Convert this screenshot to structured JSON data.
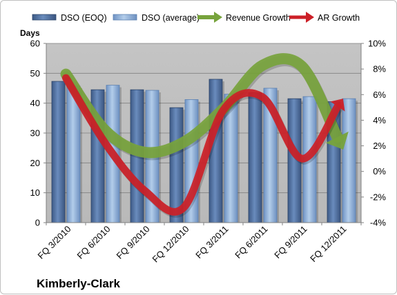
{
  "company_name": "Kimberly-Clark",
  "colors": {
    "plot_background": "#c0c0c0",
    "bar_eoq": "#4a6a9c",
    "bar_avg": "#8eb1d9",
    "revenue_growth": "#77a33c",
    "ar_growth": "#cc1f27"
  },
  "chart_data": {
    "type": "bar",
    "categories": [
      "FQ 3/2010",
      "FQ 6/2010",
      "FQ 9/2010",
      "FQ 12/2010",
      "FQ 3/2011",
      "FQ 6/2011",
      "FQ 9/2011",
      "FQ 12/2011"
    ],
    "ylabel": "Days",
    "ylim": [
      0,
      60
    ],
    "yticks": [
      "0",
      "10",
      "20",
      "30",
      "40",
      "50",
      "60"
    ],
    "y2lim": [
      -4,
      10
    ],
    "y2ticks": [
      "-4%",
      "-2%",
      "0%",
      "2%",
      "4%",
      "6%",
      "8%",
      "10%"
    ],
    "grid": true,
    "legend_position": "top",
    "series": [
      {
        "name": "DSO (EOQ)",
        "kind": "bar",
        "axis": "left",
        "values": [
          47.3,
          44.5,
          44.5,
          38.5,
          48,
          43.5,
          41.5,
          40.5
        ]
      },
      {
        "name": "DSO (average)",
        "kind": "bar",
        "axis": "left",
        "values": [
          45.7,
          46,
          44.3,
          41.2,
          43,
          45,
          42.2,
          41.5
        ]
      },
      {
        "name": "Revenue Growth",
        "kind": "arrow",
        "axis": "right",
        "values": [
          7.6,
          3.2,
          1.5,
          2.3,
          4.9,
          8.3,
          8.2,
          2
        ]
      },
      {
        "name": "AR Growth",
        "kind": "arrow",
        "axis": "right",
        "values": [
          7.3,
          2.2,
          -1.5,
          -2.8,
          4.8,
          5.8,
          1,
          5.5
        ]
      }
    ]
  }
}
